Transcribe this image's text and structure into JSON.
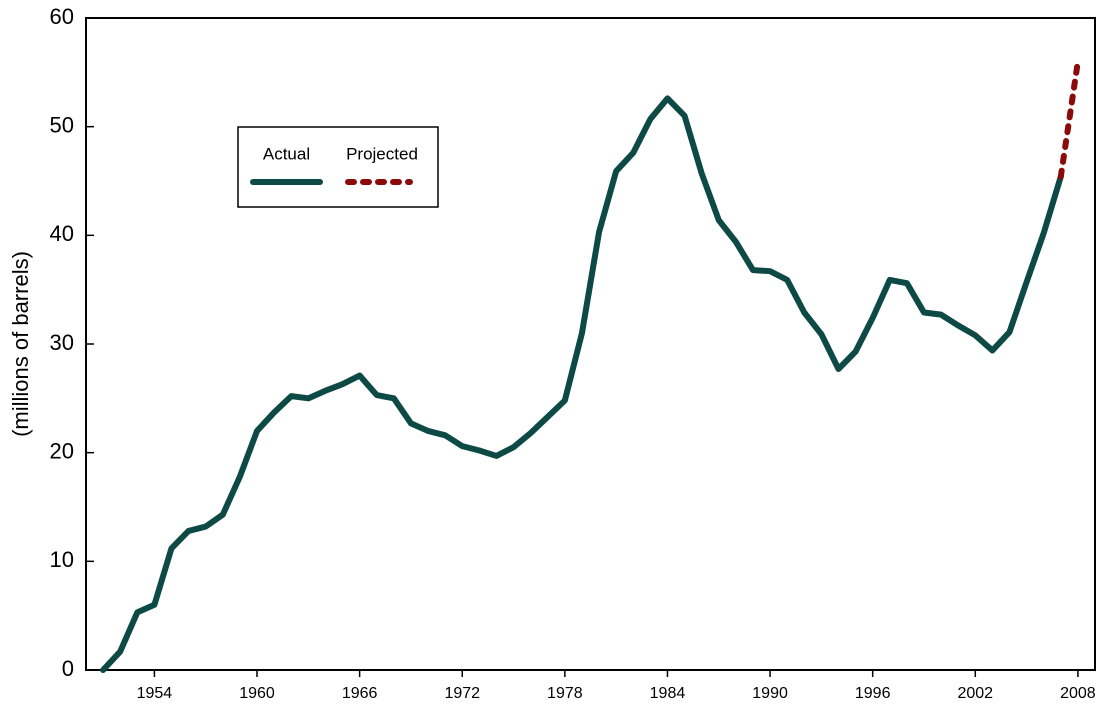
{
  "chart_data": {
    "type": "line",
    "y_label": "(millions of barrels)",
    "xlim": [
      1950,
      2009
    ],
    "xticks": [
      1954,
      1960,
      1966,
      1972,
      1978,
      1984,
      1990,
      1996,
      2002,
      2008
    ],
    "ylim": [
      0,
      60
    ],
    "yticks": [
      0,
      10,
      20,
      30,
      40,
      50,
      60
    ],
    "legend": "upper left",
    "series": [
      {
        "name": "Actual",
        "color": "#0e4a45",
        "style": "solid",
        "x": [
          1951,
          1952,
          1953,
          1954,
          1955,
          1956,
          1957,
          1958,
          1959,
          1960,
          1961,
          1962,
          1963,
          1964,
          1965,
          1966,
          1967,
          1968,
          1969,
          1970,
          1971,
          1972,
          1973,
          1974,
          1975,
          1976,
          1977,
          1978,
          1979,
          1980,
          1981,
          1982,
          1983,
          1984,
          1985,
          1986,
          1987,
          1988,
          1989,
          1990,
          1991,
          1992,
          1993,
          1994,
          1995,
          1996,
          1997,
          1998,
          1999,
          2000,
          2001,
          2002,
          2003,
          2004,
          2005,
          2006,
          2007
        ],
        "values": [
          0,
          1.7,
          5.3,
          6,
          11.2,
          12.8,
          13.2,
          14.3,
          17.8,
          22,
          23.7,
          25.2,
          25,
          25.7,
          26.3,
          27.1,
          25.3,
          25,
          22.7,
          22,
          21.6,
          20.6,
          20.2,
          19.7,
          20.5,
          21.8,
          23.3,
          24.8,
          31,
          40.3,
          45.9,
          47.6,
          50.7,
          52.6,
          51,
          45.7,
          41.4,
          39.4,
          36.8,
          36.7,
          35.9,
          32.9,
          30.9,
          27.7,
          29.3,
          32.4,
          35.9,
          35.6,
          32.9,
          32.7,
          31.7,
          30.8,
          29.4,
          31.1,
          35.7,
          40.2,
          45.4
        ]
      },
      {
        "name": "Projected",
        "color": "#8b0a0a",
        "style": "dotted",
        "x": [
          2007,
          2008
        ],
        "values": [
          45.4,
          56
        ]
      }
    ]
  }
}
